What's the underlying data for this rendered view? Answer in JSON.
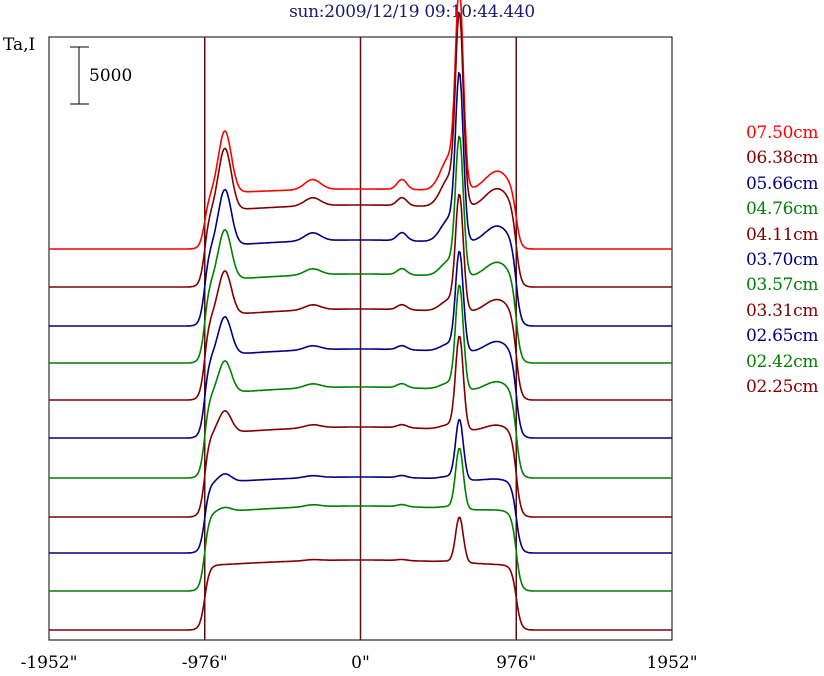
{
  "chart_data": {
    "type": "line",
    "title": "sun:2009/12/19 09:10:44.440",
    "ylabel": "Ta,I",
    "scale_bar_label": "5000",
    "x_ticks": [
      {
        "value": -1952,
        "label": "-1952\""
      },
      {
        "value": -976,
        "label": "-976\""
      },
      {
        "value": 0,
        "label": "0\""
      },
      {
        "value": 976,
        "label": "976\""
      },
      {
        "value": 1952,
        "label": "1952\""
      }
    ],
    "xlim": [
      -1952,
      1952
    ],
    "vertical_lines": [
      -976,
      0,
      976
    ],
    "grid": false,
    "legend_position": "right",
    "series": [
      {
        "name": "07.50cm",
        "color": "#ff0000",
        "baseline": 249,
        "disk": 60,
        "limb": 62,
        "peak": 185,
        "bump": 34,
        "bump2": 10
      },
      {
        "name": "06.38cm",
        "color": "#800000",
        "baseline": 287,
        "disk": 82,
        "limb": 62,
        "peak": 180,
        "bump": 30,
        "bump2": 8
      },
      {
        "name": "05.66cm",
        "color": "#000080",
        "baseline": 326,
        "disk": 86,
        "limb": 56,
        "peak": 158,
        "bump": 24,
        "bump2": 8
      },
      {
        "name": "04.76cm",
        "color": "#008000",
        "baseline": 363,
        "disk": 89,
        "limb": 50,
        "peak": 133,
        "bump": 16,
        "bump2": 6
      },
      {
        "name": "04.11cm",
        "color": "#800000",
        "baseline": 400,
        "disk": 91,
        "limb": 44,
        "peak": 112,
        "bump": 12,
        "bump2": 5
      },
      {
        "name": "03.70cm",
        "color": "#000080",
        "baseline": 438,
        "disk": 89,
        "limb": 38,
        "peak": 97,
        "bump": 8,
        "bump2": 4
      },
      {
        "name": "03.57cm",
        "color": "#008000",
        "baseline": 478,
        "disk": 91,
        "limb": 32,
        "peak": 102,
        "bump": 7,
        "bump2": 4
      },
      {
        "name": "03.31cm",
        "color": "#800000",
        "baseline": 517,
        "disk": 90,
        "limb": 22,
        "peak": 92,
        "bump": 5,
        "bump2": 3
      },
      {
        "name": "02.65cm",
        "color": "#000080",
        "baseline": 553,
        "disk": 76,
        "limb": 8,
        "peak": 59,
        "bump": 3,
        "bump2": 2
      },
      {
        "name": "02.42cm",
        "color": "#008000",
        "baseline": 591,
        "disk": 85,
        "limb": 4,
        "peak": 60,
        "bump": 2,
        "bump2": 2
      },
      {
        "name": "02.25cm",
        "color": "#800000",
        "baseline": 630,
        "disk": 70,
        "limb": 0,
        "peak": 45,
        "bump": 1,
        "bump2": 1
      }
    ]
  }
}
